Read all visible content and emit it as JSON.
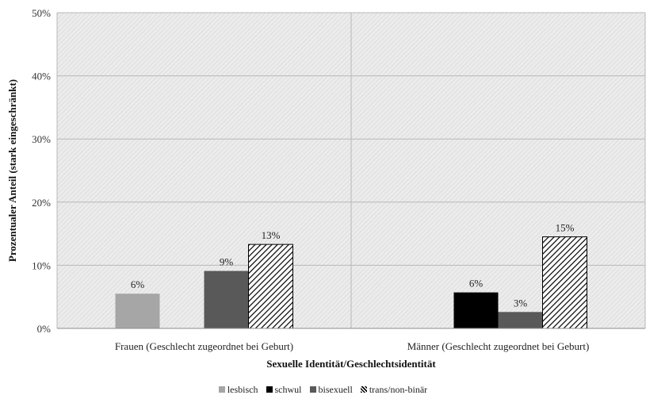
{
  "chart_data": {
    "type": "bar",
    "ylabel": "Prozentualer Anteil (stark eingeschränkt)",
    "xlabel": "Sexuelle Identität/Geschlechtsidentität",
    "ylim": [
      0,
      50
    ],
    "yticks": [
      "0%",
      "10%",
      "20%",
      "30%",
      "40%",
      "50%"
    ],
    "categories": [
      "Frauen (Geschlecht zugeordnet bei Geburt)",
      "Männer (Geschlecht zugeordnet bei Geburt)"
    ],
    "series": [
      {
        "name": "lesbisch",
        "values": [
          5.5,
          null
        ],
        "labels": [
          "6%",
          ""
        ],
        "color": "#a6a6a6",
        "pattern": "solid"
      },
      {
        "name": "schwul",
        "values": [
          null,
          5.7
        ],
        "labels": [
          "",
          "6%"
        ],
        "color": "#000000",
        "pattern": "solid"
      },
      {
        "name": "bisexuell",
        "values": [
          9.1,
          2.6
        ],
        "labels": [
          "9%",
          "3%"
        ],
        "color": "#595959",
        "pattern": "solid"
      },
      {
        "name": "trans/non-binär",
        "values": [
          13.3,
          14.5
        ],
        "labels": [
          "13%",
          "15%"
        ],
        "color": "#000000",
        "pattern": "hatch"
      }
    ],
    "grid": true,
    "legend_position": "bottom"
  }
}
